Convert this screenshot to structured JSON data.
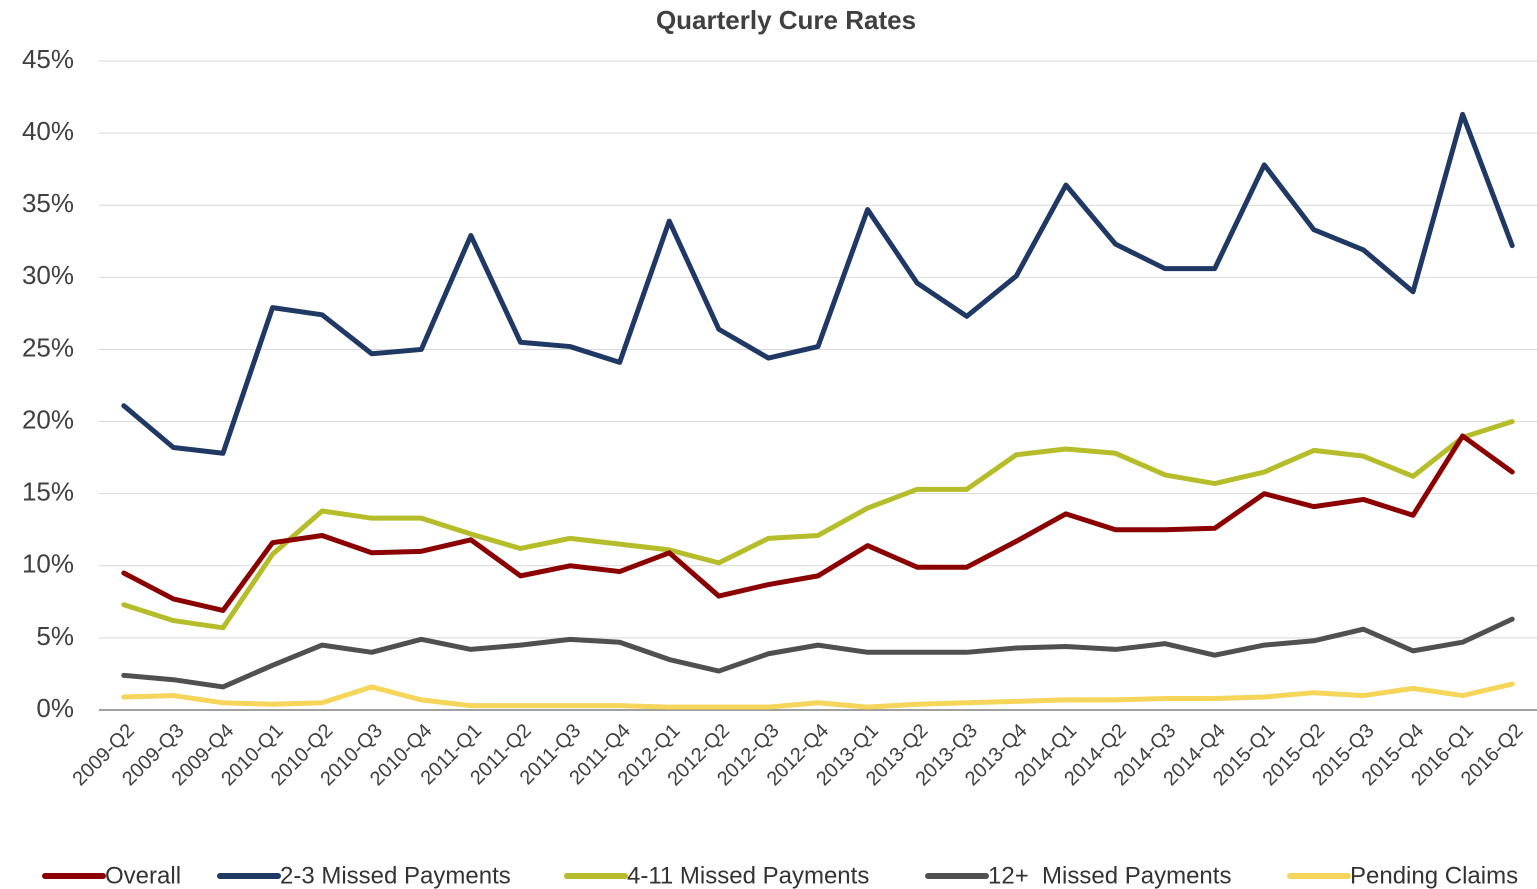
{
  "chart_data": {
    "type": "line",
    "title": "Quarterly Cure Rates",
    "categories": [
      "2009-Q2",
      "2009-Q3",
      "2009-Q4",
      "2010-Q1",
      "2010-Q2",
      "2010-Q3",
      "2010-Q4",
      "2011-Q1",
      "2011-Q2",
      "2011-Q3",
      "2011-Q4",
      "2012-Q1",
      "2012-Q2",
      "2012-Q3",
      "2012-Q4",
      "2013-Q1",
      "2013-Q2",
      "2013-Q3",
      "2013-Q4",
      "2014-Q1",
      "2014-Q2",
      "2014-Q3",
      "2014-Q4",
      "2015-Q1",
      "2015-Q2",
      "2015-Q3",
      "2015-Q4",
      "2016-Q1",
      "2016-Q2"
    ],
    "series": [
      {
        "name": "Overall",
        "color": "#8b0000",
        "values": [
          9.5,
          7.7,
          6.9,
          11.6,
          12.1,
          10.9,
          11.0,
          11.8,
          9.3,
          10.0,
          9.6,
          10.9,
          7.9,
          8.7,
          9.3,
          11.4,
          9.9,
          9.9,
          11.7,
          13.6,
          12.5,
          12.5,
          12.6,
          15.0,
          14.1,
          14.6,
          13.5,
          19.0,
          16.5
        ]
      },
      {
        "name": "2-3 Missed Payments",
        "color": "#1f3864",
        "values": [
          21.1,
          18.2,
          17.8,
          27.9,
          27.4,
          24.7,
          25.0,
          32.9,
          25.5,
          25.2,
          24.1,
          33.9,
          26.4,
          24.4,
          25.2,
          34.7,
          29.6,
          27.3,
          30.1,
          36.4,
          32.3,
          30.6,
          30.6,
          37.8,
          33.3,
          31.9,
          29.0,
          41.3,
          32.2
        ]
      },
      {
        "name": "4-11 Missed Payments",
        "color": "#b5bd2a",
        "values": [
          7.3,
          6.2,
          5.7,
          10.8,
          13.8,
          13.3,
          13.3,
          12.2,
          11.2,
          11.9,
          11.5,
          11.1,
          10.2,
          11.9,
          12.1,
          14.0,
          15.3,
          15.3,
          17.7,
          18.1,
          17.8,
          16.3,
          15.7,
          16.5,
          18.0,
          17.6,
          16.2,
          18.9,
          20.0
        ]
      },
      {
        "name": "12+  Missed Payments",
        "color": "#505050",
        "values": [
          2.4,
          2.1,
          1.6,
          3.1,
          4.5,
          4.0,
          4.9,
          4.2,
          4.5,
          4.9,
          4.7,
          3.5,
          2.7,
          3.9,
          4.5,
          4.0,
          4.0,
          4.0,
          4.3,
          4.4,
          4.2,
          4.6,
          3.8,
          4.5,
          4.8,
          5.6,
          4.1,
          4.7,
          6.3
        ]
      },
      {
        "name": "Pending Claims",
        "color": "#f5d55a",
        "values": [
          0.9,
          1.0,
          0.5,
          0.4,
          0.5,
          1.6,
          0.7,
          0.3,
          0.3,
          0.3,
          0.3,
          0.2,
          0.2,
          0.2,
          0.5,
          0.2,
          0.4,
          0.5,
          0.6,
          0.7,
          0.7,
          0.8,
          0.8,
          0.9,
          1.2,
          1.0,
          1.5,
          1.0,
          1.8
        ]
      }
    ],
    "ylim": [
      0,
      45
    ],
    "yticks": [
      {
        "value": 0,
        "label": "0%"
      },
      {
        "value": 5,
        "label": "5%"
      },
      {
        "value": 10,
        "label": "10%"
      },
      {
        "value": 15,
        "label": "15%"
      },
      {
        "value": 20,
        "label": "20%"
      },
      {
        "value": 25,
        "label": "25%"
      },
      {
        "value": 30,
        "label": "30%"
      },
      {
        "value": 35,
        "label": "35%"
      },
      {
        "value": 40,
        "label": "40%"
      },
      {
        "value": 45,
        "label": "45%"
      }
    ],
    "grid": true,
    "legend": "bottom"
  }
}
